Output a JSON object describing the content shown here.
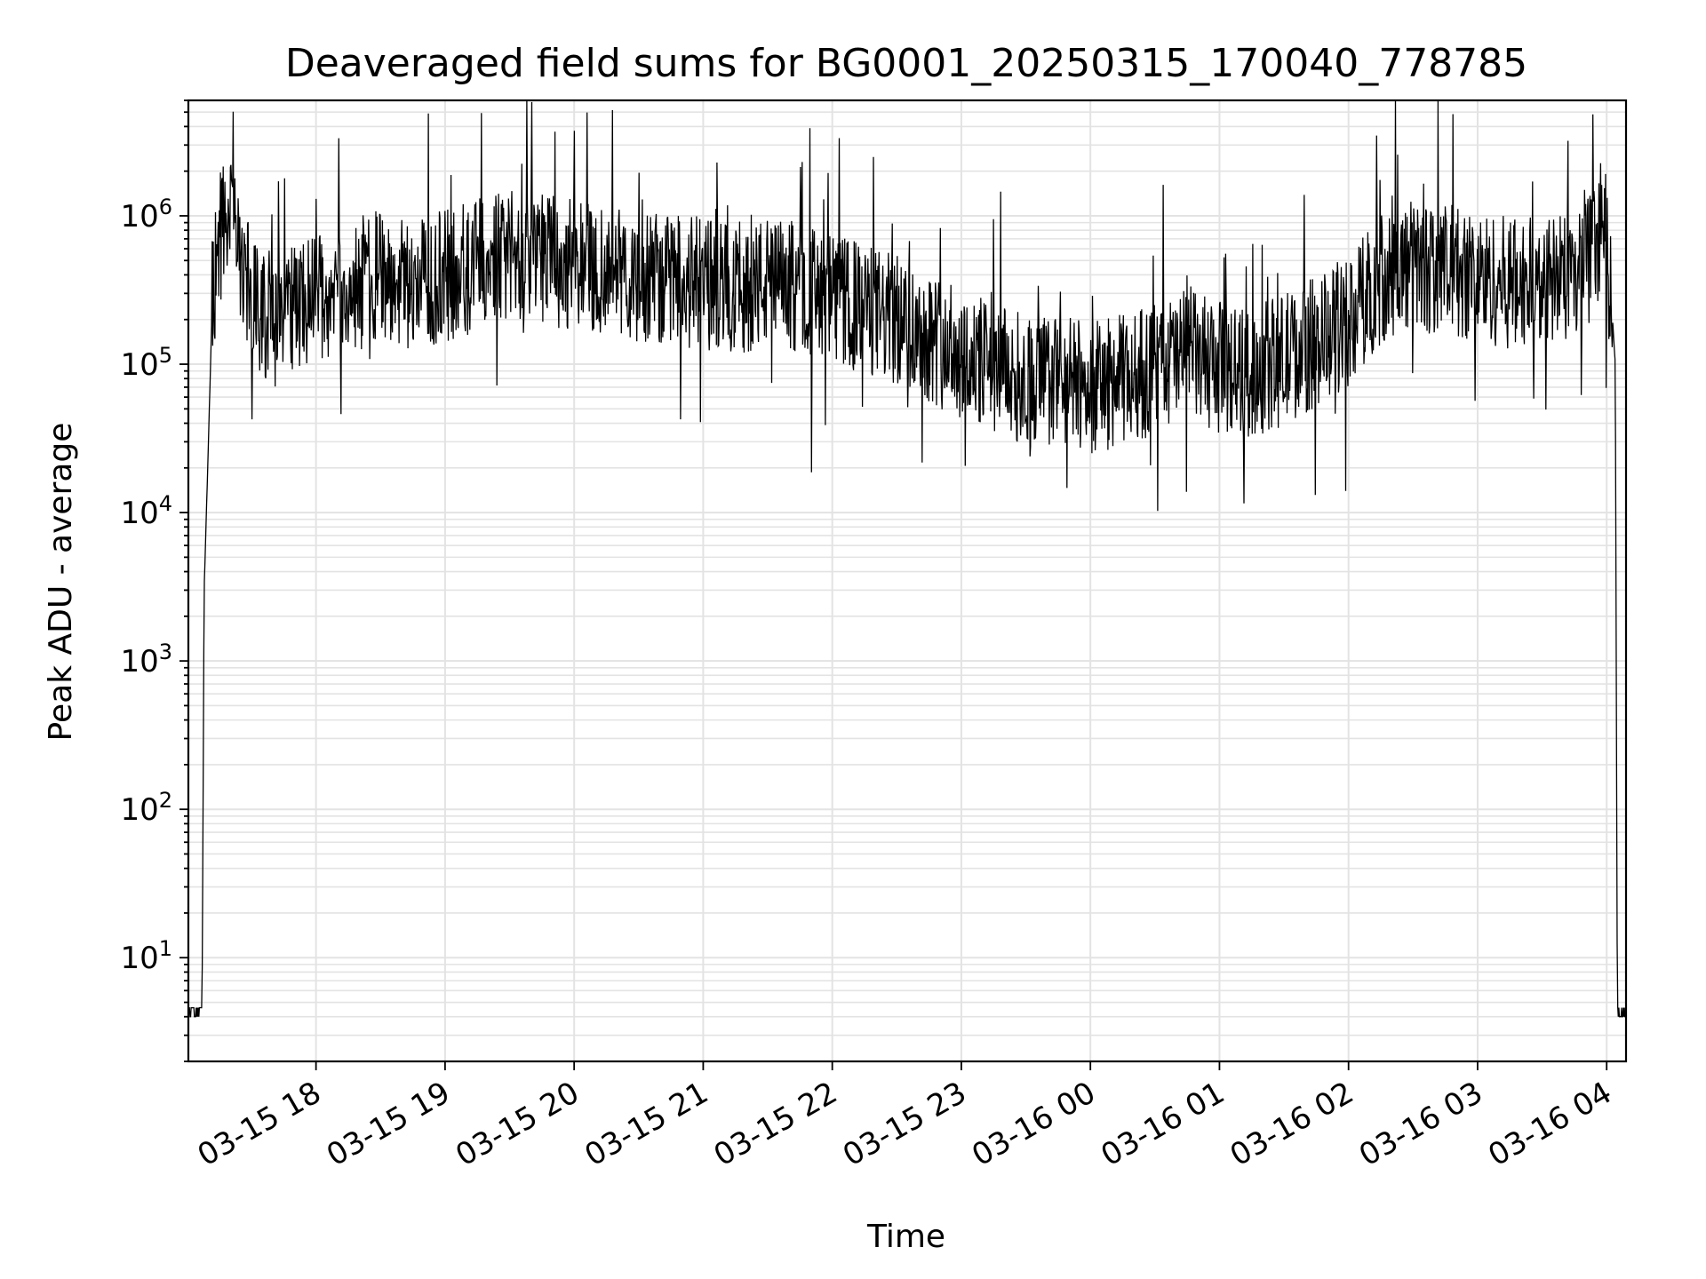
{
  "chart_data": {
    "type": "line",
    "title": "Deaveraged field sums for BG0001_20250315_170040_778785",
    "xlabel": "Time",
    "ylabel": "Peak ADU - average",
    "y_scale": "log",
    "ylim": [
      2,
      6000000
    ],
    "xlim": [
      "03-15 17:00:40",
      "03-16 04:09:00"
    ],
    "grid": true,
    "legend": "none",
    "line_color": "#000000",
    "x_ticks": [
      "03-15 18",
      "03-15 19",
      "03-15 20",
      "03-15 21",
      "03-15 22",
      "03-15 23",
      "03-16 00",
      "03-16 01",
      "03-16 02",
      "03-16 03",
      "03-16 04"
    ],
    "y_ticks": [
      {
        "value": 10,
        "base": "10",
        "exp": "1"
      },
      {
        "value": 100,
        "base": "10",
        "exp": "2"
      },
      {
        "value": 1000,
        "base": "10",
        "exp": "3"
      },
      {
        "value": 10000,
        "base": "10",
        "exp": "4"
      },
      {
        "value": 100000,
        "base": "10",
        "exp": "5"
      },
      {
        "value": 1000000,
        "base": "10",
        "exp": "6"
      }
    ],
    "series": [
      {
        "x": [
          "03-15 17:00:40",
          "03-15 17:07",
          "03-15 17:08",
          "03-15 17:10",
          "03-15 17:12",
          "03-15 17:15",
          "03-15 17:18",
          "03-15 17:20",
          "03-15 17:25",
          "03-15 17:30",
          "03-15 17:40",
          "03-15 17:50",
          "03-15 18:00",
          "03-15 18:15",
          "03-15 18:30",
          "03-15 18:45",
          "03-15 19:00",
          "03-15 19:15",
          "03-15 19:30",
          "03-15 19:45",
          "03-15 20:00",
          "03-15 20:15",
          "03-15 20:30",
          "03-15 20:45",
          "03-15 21:00",
          "03-15 21:15",
          "03-15 21:30",
          "03-15 21:45",
          "03-15 22:00",
          "03-15 22:15",
          "03-15 22:30",
          "03-15 22:45",
          "03-15 23:00",
          "03-15 23:15",
          "03-15 23:30",
          "03-15 23:45",
          "03-16 00:00",
          "03-16 00:15",
          "03-16 00:30",
          "03-16 00:45",
          "03-16 01:00",
          "03-16 01:15",
          "03-16 01:30",
          "03-16 01:45",
          "03-16 02:00",
          "03-16 02:15",
          "03-16 02:30",
          "03-16 02:45",
          "03-16 03:00",
          "03-16 03:15",
          "03-16 03:30",
          "03-16 03:45",
          "03-16 04:00",
          "03-16 04:02",
          "03-16 04:04",
          "03-16 04:05",
          "03-16 04:09"
        ],
        "y": [
          4,
          4,
          3000,
          30000,
          350000,
          900000,
          1200000,
          1100000,
          600000,
          350000,
          250000,
          300000,
          350000,
          450000,
          500000,
          450000,
          500000,
          600000,
          750000,
          650000,
          600000,
          550000,
          500000,
          480000,
          450000,
          420000,
          450000,
          420000,
          350000,
          300000,
          250000,
          200000,
          150000,
          120000,
          100000,
          100000,
          90000,
          100000,
          120000,
          150000,
          120000,
          110000,
          140000,
          180000,
          250000,
          500000,
          600000,
          550000,
          500000,
          450000,
          450000,
          500000,
          900000,
          300000,
          100000,
          4,
          4
        ]
      }
    ]
  }
}
